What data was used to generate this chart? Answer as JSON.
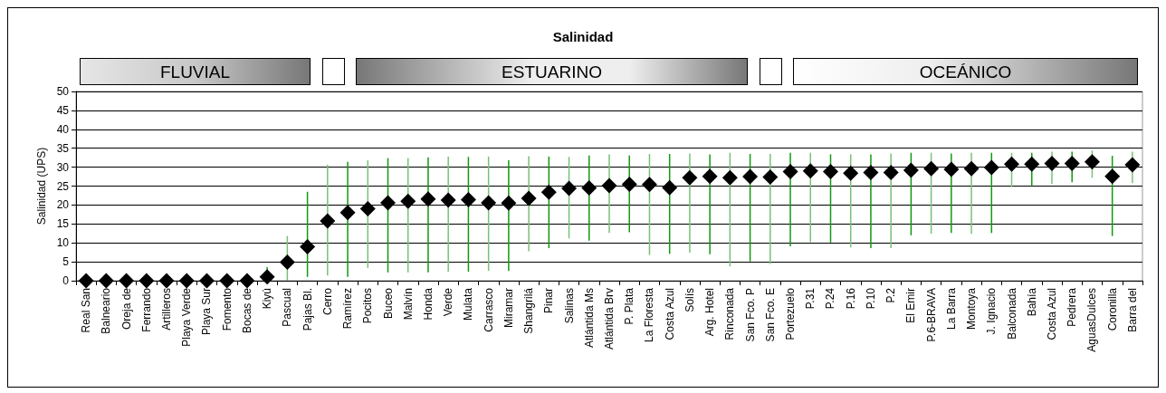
{
  "chart_data": {
    "type": "scatter",
    "title": "Salinidad",
    "ylabel": "Salinidad (UPS)",
    "annotations": [
      "FLUVIAL",
      "ESTUARINO",
      "OCEÁNICO"
    ],
    "categories": [
      "Real San",
      "Balneario",
      "Oreja de",
      "Ferrando",
      "Artilleros",
      "Playa Verde",
      "Playa Sur",
      "Fomento",
      "Bocas de",
      "Kiyú",
      "Pascual",
      "Pajas Bl.",
      "Cerro",
      "Ramírez",
      "Pocitos",
      "Buceo",
      "Malvín",
      "Honda",
      "Verde",
      "Mulata",
      "Carrasco",
      "Miramar",
      "Shangrilá",
      "Pinar",
      "Salinas",
      "Atlántida Ms",
      "Atlántida Brv",
      "P. Plata",
      "La Floresta",
      "Costa Azul",
      "Solís",
      "Arg. Hotel",
      "Rinconada",
      "San Fco. P",
      "San Fco. E",
      "Portezuelo",
      "P.31",
      "P.24",
      "P.16",
      "P.10",
      "P.2",
      "El Emir",
      "P.6-BRAVA",
      "La Barra",
      "Montoya",
      "J. Ignacio",
      "Balconada",
      "Bahía",
      "Costa Azul",
      "Pedrera",
      "AguasDulces",
      "Coronilla",
      "Barra del"
    ],
    "series": [
      {
        "color": "#000000",
        "values": [
          0,
          0,
          0,
          0,
          0,
          0,
          0,
          0,
          0,
          1.0,
          4.9,
          9.0,
          15.8,
          18.0,
          19.0,
          20.6,
          21.0,
          21.6,
          21.3,
          21.4,
          20.6,
          20.5,
          21.8,
          23.4,
          24.4,
          24.5,
          25.1,
          25.5,
          25.4,
          24.6,
          27.2,
          27.6,
          27.2,
          27.5,
          27.4,
          28.8,
          29.0,
          28.8,
          28.4,
          28.6,
          28.6,
          29.2,
          29.6,
          29.4,
          29.6,
          29.9,
          30.8,
          30.8,
          31.0,
          31.0,
          31.4,
          27.6,
          30.6
        ],
        "errors": [
          null,
          null,
          null,
          null,
          null,
          null,
          null,
          null,
          null,
          [
            0,
            3.6
          ],
          [
            0,
            11.8
          ],
          [
            1.0,
            23.5
          ],
          [
            1.4,
            30.6
          ],
          [
            1.0,
            31.4
          ],
          [
            3.4,
            31.8
          ],
          [
            2.2,
            32.4
          ],
          [
            2.2,
            32.4
          ],
          [
            2.2,
            32.6
          ],
          [
            2.4,
            32.8
          ],
          [
            2.4,
            32.7
          ],
          [
            2.6,
            32.8
          ],
          [
            2.6,
            31.8
          ],
          [
            7.8,
            32.9
          ],
          [
            8.6,
            32.8
          ],
          [
            11.2,
            32.7
          ],
          [
            10.6,
            33.1
          ],
          [
            12.6,
            33.4
          ],
          [
            12.8,
            33.1
          ],
          [
            6.8,
            33.5
          ],
          [
            7.1,
            33.5
          ],
          [
            7.4,
            33.6
          ],
          [
            7.0,
            33.4
          ],
          [
            3.8,
            33.8
          ],
          [
            5.1,
            33.5
          ],
          [
            4.4,
            33.5
          ],
          [
            9.1,
            33.8
          ],
          [
            10.2,
            33.8
          ],
          [
            10.1,
            33.4
          ],
          [
            8.8,
            33.4
          ],
          [
            8.6,
            33.4
          ],
          [
            8.6,
            33.6
          ],
          [
            12.0,
            33.8
          ],
          [
            12.4,
            33.8
          ],
          [
            12.6,
            33.6
          ],
          [
            12.4,
            33.8
          ],
          [
            12.6,
            33.8
          ],
          [
            24.8,
            33.8
          ],
          [
            25.0,
            33.8
          ],
          [
            25.6,
            34.1
          ],
          [
            26.0,
            34.1
          ],
          [
            27.2,
            34.4
          ],
          [
            11.8,
            33.0
          ],
          [
            25.8,
            34.1
          ]
        ]
      }
    ],
    "ylim": [
      0,
      50
    ],
    "yticks": [
      0,
      5,
      10,
      15,
      20,
      25,
      30,
      35,
      40,
      45,
      50
    ],
    "grid": "y",
    "marker": "diamond"
  }
}
